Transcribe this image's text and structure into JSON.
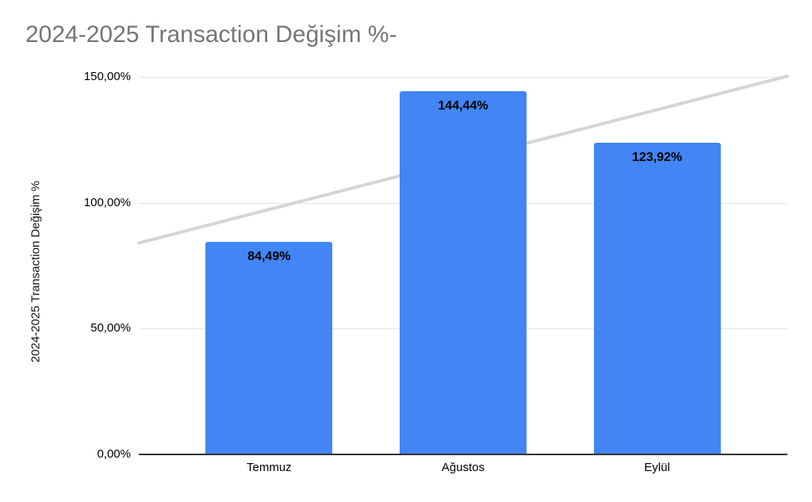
{
  "chart_data": {
    "type": "bar",
    "title": "2024-2025 Transaction Değişim %-",
    "categories": [
      "Temmuz",
      "Ağustos",
      "Eylül"
    ],
    "values": [
      84.49,
      144.44,
      123.92
    ],
    "value_labels": [
      "84,49%",
      "144,44%",
      "123,92%"
    ],
    "xlabel": "",
    "ylabel": "2024-2025 Transaction Değişim %",
    "ylim": [
      0,
      150
    ],
    "yticks": [
      0,
      50,
      100,
      150
    ],
    "ytick_labels": [
      "0,00%",
      "50,00%",
      "100,00%",
      "150,00%"
    ],
    "grid": true,
    "legend_position": "none",
    "trendline": {
      "type": "linear",
      "start_value": 84.0,
      "end_value": 150.3
    },
    "colors": {
      "bar": "#4285f4",
      "trendline": "#d5d5d5",
      "gridline": "#e3e3e3",
      "axis_line": "#333333",
      "title_text": "#757575",
      "label_text": "#000000",
      "background": "#ffffff"
    }
  }
}
